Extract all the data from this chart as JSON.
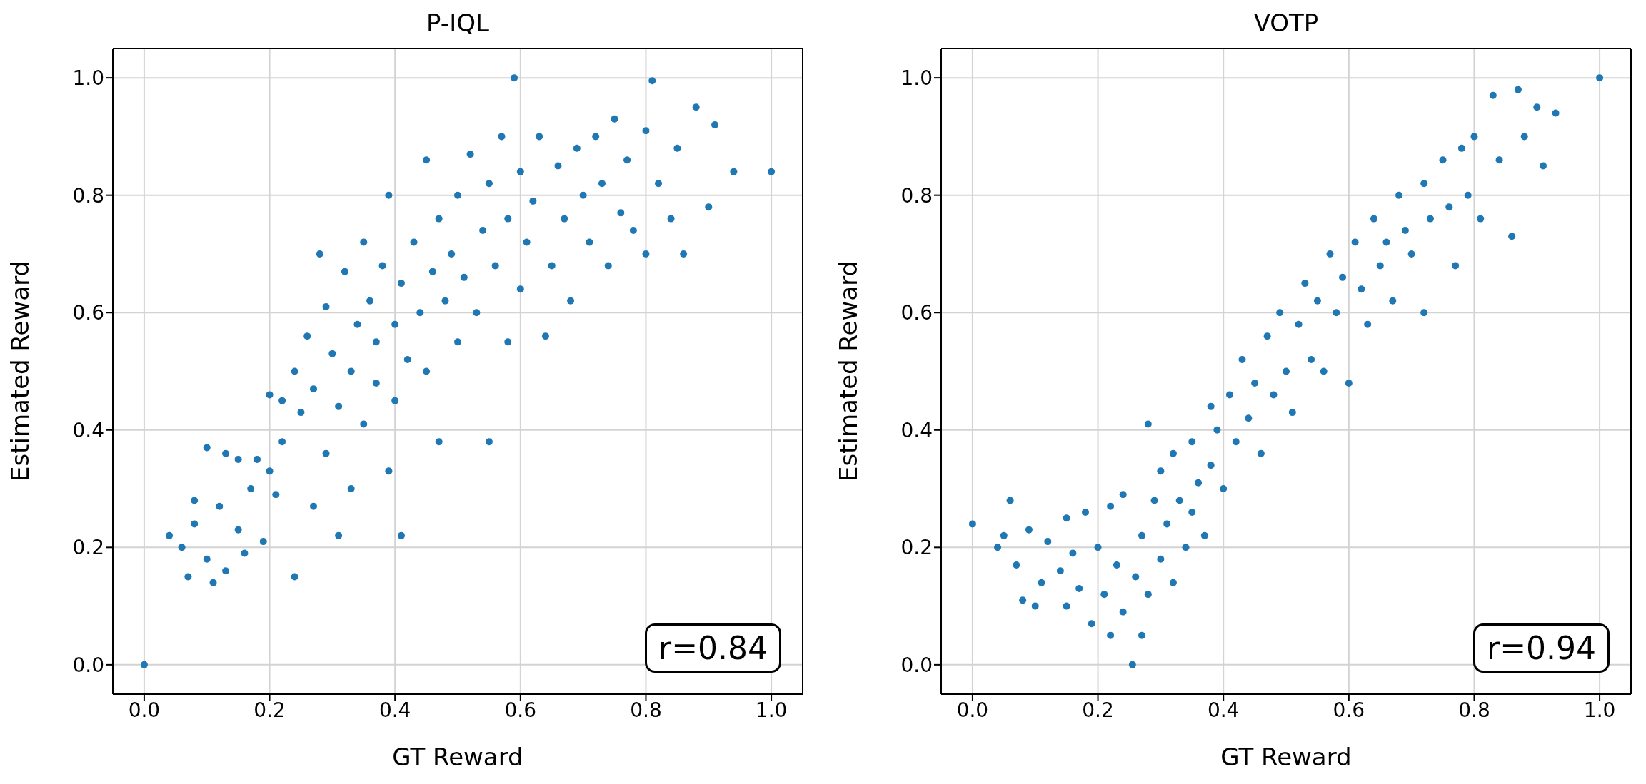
{
  "chart_data": [
    {
      "type": "scatter",
      "title": "P-IQL",
      "xlabel": "GT Reward",
      "ylabel": "Estimated Reward",
      "color": "#1f77b4",
      "marker": "circle",
      "grid": true,
      "annotations": [
        "r=0.84"
      ],
      "xlim": [
        -0.05,
        1.05
      ],
      "ylim": [
        -0.05,
        1.05
      ],
      "xticks": [
        {
          "value": 0,
          "label": "0.0"
        },
        {
          "value": 0.2,
          "label": "0.2"
        },
        {
          "value": 0.4,
          "label": "0.4"
        },
        {
          "value": 0.6,
          "label": "0.6"
        },
        {
          "value": 0.8,
          "label": "0.8"
        },
        {
          "value": 1,
          "label": "1.0"
        }
      ],
      "yticks": [
        {
          "value": 0,
          "label": "0.0"
        },
        {
          "value": 0.2,
          "label": "0.2"
        },
        {
          "value": 0.4,
          "label": "0.4"
        },
        {
          "value": 0.6,
          "label": "0.6"
        },
        {
          "value": 0.8,
          "label": "0.8"
        },
        {
          "value": 1,
          "label": "1.0"
        }
      ],
      "x": [
        0,
        0.04,
        0.06,
        0.07,
        0.08,
        0.08,
        0.1,
        0.1,
        0.11,
        0.12,
        0.13,
        0.13,
        0.15,
        0.15,
        0.16,
        0.17,
        0.18,
        0.19,
        0.2,
        0.2,
        0.21,
        0.22,
        0.22,
        0.24,
        0.24,
        0.25,
        0.26,
        0.27,
        0.27,
        0.28,
        0.29,
        0.29,
        0.3,
        0.31,
        0.31,
        0.32,
        0.33,
        0.33,
        0.34,
        0.35,
        0.35,
        0.36,
        0.37,
        0.37,
        0.38,
        0.39,
        0.39,
        0.4,
        0.4,
        0.41,
        0.41,
        0.42,
        0.43,
        0.44,
        0.45,
        0.45,
        0.46,
        0.47,
        0.47,
        0.48,
        0.49,
        0.5,
        0.5,
        0.51,
        0.52,
        0.53,
        0.54,
        0.55,
        0.55,
        0.56,
        0.57,
        0.58,
        0.58,
        0.59,
        0.6,
        0.6,
        0.61,
        0.62,
        0.63,
        0.64,
        0.65,
        0.66,
        0.67,
        0.68,
        0.69,
        0.7,
        0.71,
        0.72,
        0.73,
        0.74,
        0.75,
        0.76,
        0.77,
        0.78,
        0.8,
        0.8,
        0.81,
        0.82,
        0.84,
        0.85,
        0.86,
        0.88,
        0.9,
        0.91,
        0.94,
        1.0
      ],
      "values": [
        0,
        0.22,
        0.2,
        0.15,
        0.28,
        0.24,
        0.37,
        0.18,
        0.14,
        0.27,
        0.36,
        0.16,
        0.35,
        0.23,
        0.19,
        0.3,
        0.35,
        0.21,
        0.46,
        0.33,
        0.29,
        0.38,
        0.45,
        0.15,
        0.5,
        0.43,
        0.56,
        0.27,
        0.47,
        0.7,
        0.61,
        0.36,
        0.53,
        0.22,
        0.44,
        0.67,
        0.5,
        0.3,
        0.58,
        0.41,
        0.72,
        0.62,
        0.48,
        0.55,
        0.68,
        0.33,
        0.8,
        0.58,
        0.45,
        0.22,
        0.65,
        0.52,
        0.72,
        0.6,
        0.86,
        0.5,
        0.67,
        0.38,
        0.76,
        0.62,
        0.7,
        0.55,
        0.8,
        0.66,
        0.87,
        0.6,
        0.74,
        0.38,
        0.82,
        0.68,
        0.9,
        0.55,
        0.76,
        1.0,
        0.64,
        0.84,
        0.72,
        0.79,
        0.9,
        0.56,
        0.68,
        0.85,
        0.76,
        0.62,
        0.88,
        0.8,
        0.72,
        0.9,
        0.82,
        0.68,
        0.93,
        0.77,
        0.86,
        0.74,
        0.7,
        0.91,
        0.995,
        0.82,
        0.76,
        0.88,
        0.7,
        0.95,
        0.78,
        0.92,
        0.84,
        0.84
      ]
    },
    {
      "type": "scatter",
      "title": "VOTP",
      "xlabel": "GT Reward",
      "ylabel": "Estimated Reward",
      "color": "#1f77b4",
      "marker": "circle",
      "grid": true,
      "annotations": [
        "r=0.94"
      ],
      "xlim": [
        -0.05,
        1.05
      ],
      "ylim": [
        -0.05,
        1.05
      ],
      "xticks": [
        {
          "value": 0,
          "label": "0.0"
        },
        {
          "value": 0.2,
          "label": "0.2"
        },
        {
          "value": 0.4,
          "label": "0.4"
        },
        {
          "value": 0.6,
          "label": "0.6"
        },
        {
          "value": 0.8,
          "label": "0.8"
        },
        {
          "value": 1,
          "label": "1.0"
        }
      ],
      "yticks": [
        {
          "value": 0,
          "label": "0.0"
        },
        {
          "value": 0.2,
          "label": "0.2"
        },
        {
          "value": 0.4,
          "label": "0.4"
        },
        {
          "value": 0.6,
          "label": "0.6"
        },
        {
          "value": 0.8,
          "label": "0.8"
        },
        {
          "value": 1,
          "label": "1.0"
        }
      ],
      "x": [
        0,
        0.04,
        0.05,
        0.06,
        0.07,
        0.08,
        0.09,
        0.1,
        0.11,
        0.12,
        0.14,
        0.15,
        0.15,
        0.16,
        0.17,
        0.18,
        0.19,
        0.2,
        0.21,
        0.22,
        0.22,
        0.23,
        0.24,
        0.24,
        0.255,
        0.26,
        0.27,
        0.27,
        0.28,
        0.28,
        0.29,
        0.3,
        0.3,
        0.31,
        0.32,
        0.32,
        0.33,
        0.34,
        0.35,
        0.35,
        0.36,
        0.37,
        0.38,
        0.38,
        0.39,
        0.4,
        0.41,
        0.42,
        0.43,
        0.44,
        0.45,
        0.46,
        0.47,
        0.48,
        0.49,
        0.5,
        0.51,
        0.52,
        0.53,
        0.54,
        0.55,
        0.56,
        0.57,
        0.58,
        0.59,
        0.6,
        0.61,
        0.62,
        0.63,
        0.64,
        0.65,
        0.66,
        0.67,
        0.68,
        0.69,
        0.7,
        0.72,
        0.72,
        0.73,
        0.75,
        0.76,
        0.77,
        0.78,
        0.79,
        0.8,
        0.81,
        0.83,
        0.84,
        0.86,
        0.87,
        0.88,
        0.9,
        0.91,
        0.93,
        1.0
      ],
      "values": [
        0.24,
        0.2,
        0.22,
        0.28,
        0.17,
        0.11,
        0.23,
        0.1,
        0.14,
        0.21,
        0.16,
        0.25,
        0.1,
        0.19,
        0.13,
        0.26,
        0.07,
        0.2,
        0.12,
        0.27,
        0.05,
        0.17,
        0.09,
        0.29,
        0,
        0.15,
        0.05,
        0.22,
        0.41,
        0.12,
        0.28,
        0.18,
        0.33,
        0.24,
        0.36,
        0.14,
        0.28,
        0.2,
        0.38,
        0.26,
        0.31,
        0.22,
        0.44,
        0.34,
        0.4,
        0.3,
        0.46,
        0.38,
        0.52,
        0.42,
        0.48,
        0.36,
        0.56,
        0.46,
        0.6,
        0.5,
        0.43,
        0.58,
        0.65,
        0.52,
        0.62,
        0.5,
        0.7,
        0.6,
        0.66,
        0.48,
        0.72,
        0.64,
        0.58,
        0.76,
        0.68,
        0.72,
        0.62,
        0.8,
        0.74,
        0.7,
        0.6,
        0.82,
        0.76,
        0.86,
        0.78,
        0.68,
        0.88,
        0.8,
        0.9,
        0.76,
        0.97,
        0.86,
        0.73,
        0.98,
        0.9,
        0.95,
        0.85,
        0.94,
        1.0
      ]
    }
  ]
}
